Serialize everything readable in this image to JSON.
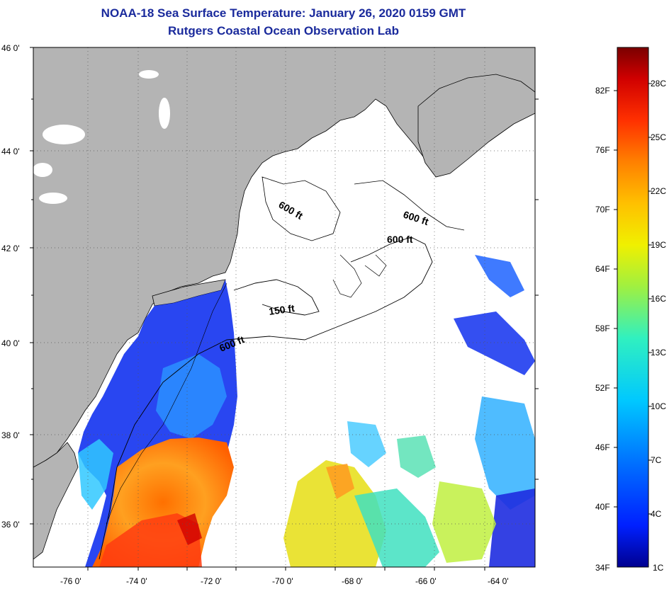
{
  "title": "NOAA-18 Sea Surface Temperature:  January 26, 2020 0159 GMT",
  "subtitle": "Rutgers Coastal Ocean Observation Lab",
  "map": {
    "lat_labels": [
      "46 0'",
      "44 0'",
      "42 0'",
      "40 0'",
      "38 0'",
      "36 0'"
    ],
    "lon_labels": [
      "-76 0'",
      "-74 0'",
      "-72 0'",
      "-70 0'",
      "-68 0'",
      "-66 0'",
      "-64 0'"
    ],
    "isobath_labels": [
      {
        "text": "600 ft",
        "id": "iso-600-gulf-of-maine"
      },
      {
        "text": "600 ft",
        "id": "iso-600-northeast"
      },
      {
        "text": "600 ft",
        "id": "iso-600-georges"
      },
      {
        "text": "150 ft",
        "id": "iso-150-nantucket"
      },
      {
        "text": "600 ft",
        "id": "iso-600-shelf-break"
      }
    ],
    "colors": {
      "land": "#b4b4b4",
      "ocean_no_data": "#ffffff",
      "grid": "#555555"
    }
  },
  "colorbar": {
    "fahrenheit_labels": [
      "82F",
      "76F",
      "70F",
      "64F",
      "58F",
      "52F",
      "46F",
      "40F",
      "34F"
    ],
    "celsius_labels": [
      "28C",
      "25C",
      "22C",
      "19C",
      "16C",
      "13C",
      "10C",
      "7C",
      "4C",
      "1C"
    ],
    "colors": [
      "#7a0000",
      "#c80000",
      "#ff3c00",
      "#ff8c00",
      "#ffd400",
      "#c8f000",
      "#50f0a0",
      "#00d8ff",
      "#0090ff",
      "#0030ff",
      "#000090"
    ]
  }
}
